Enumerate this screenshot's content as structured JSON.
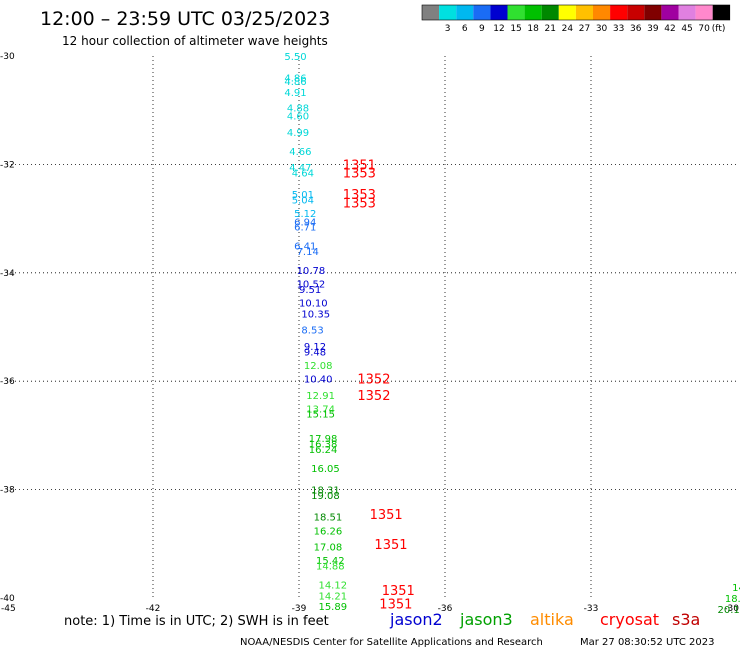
{
  "header": {
    "title": "12:00 – 23:59 UTC 03/25/2023",
    "subtitle": "12 hour collection of altimeter wave heights"
  },
  "legend": {
    "unit": "(ft)",
    "bins": [
      {
        "label": "",
        "color": "#808080"
      },
      {
        "label": "3",
        "color": "#00e0e0"
      },
      {
        "label": "6",
        "color": "#00b8f0"
      },
      {
        "label": "9",
        "color": "#1a6cf5"
      },
      {
        "label": "12",
        "color": "#0000d0"
      },
      {
        "label": "15",
        "color": "#30e030"
      },
      {
        "label": "18",
        "color": "#00c000"
      },
      {
        "label": "21",
        "color": "#008800"
      },
      {
        "label": "24",
        "color": "#ffff00"
      },
      {
        "label": "27",
        "color": "#ffc000"
      },
      {
        "label": "30",
        "color": "#ff8800"
      },
      {
        "label": "33",
        "color": "#ff0000"
      },
      {
        "label": "36",
        "color": "#c80000"
      },
      {
        "label": "39",
        "color": "#800000"
      },
      {
        "label": "42",
        "color": "#a000a0"
      },
      {
        "label": "45",
        "color": "#e080e0"
      },
      {
        "label": "70",
        "color": "#ff88cc"
      },
      {
        "label": "",
        "color": "#000000"
      }
    ]
  },
  "map": {
    "lon_range": [
      -45,
      -30
    ],
    "lat_range": [
      -40,
      -30
    ],
    "x_ticks": [
      "-45",
      "-42",
      "-39",
      "-36",
      "-33",
      "-30"
    ],
    "y_ticks": [
      "-30",
      "-32",
      "-34",
      "-36",
      "-38",
      "-40"
    ],
    "observations": [
      {
        "text": "5.50",
        "lon": -39.3,
        "lat": -30.0,
        "color": "#00d8d8"
      },
      {
        "text": "4.86",
        "lon": -39.3,
        "lat": -30.4,
        "color": "#00d8d8"
      },
      {
        "text": "4.86",
        "lon": -39.3,
        "lat": -30.46,
        "color": "#00d8d8"
      },
      {
        "text": "4.91",
        "lon": -39.3,
        "lat": -30.66,
        "color": "#00d8d8"
      },
      {
        "text": "4.88",
        "lon": -39.25,
        "lat": -30.95,
        "color": "#00d8d8"
      },
      {
        "text": "4.60",
        "lon": -39.25,
        "lat": -31.1,
        "color": "#00d8d8"
      },
      {
        "text": "4.99",
        "lon": -39.25,
        "lat": -31.4,
        "color": "#00d8d8"
      },
      {
        "text": "4.66",
        "lon": -39.2,
        "lat": -31.75,
        "color": "#00d8d8"
      },
      {
        "text": "4.47",
        "lon": -39.2,
        "lat": -32.05,
        "color": "#00d8d8"
      },
      {
        "text": "4.64",
        "lon": -39.15,
        "lat": -32.15,
        "color": "#00d8d8"
      },
      {
        "text": "5.01",
        "lon": -39.15,
        "lat": -32.55,
        "color": "#00b8f0"
      },
      {
        "text": "5.04",
        "lon": -39.15,
        "lat": -32.65,
        "color": "#00b8f0"
      },
      {
        "text": "5.12",
        "lon": -39.1,
        "lat": -32.9,
        "color": "#00b8f0"
      },
      {
        "text": "6.94",
        "lon": -39.1,
        "lat": -33.05,
        "color": "#1a6cf5"
      },
      {
        "text": "6.71",
        "lon": -39.1,
        "lat": -33.15,
        "color": "#1a6cf5"
      },
      {
        "text": "6.41",
        "lon": -39.1,
        "lat": -33.5,
        "color": "#1a6cf5"
      },
      {
        "text": "7.14",
        "lon": -39.05,
        "lat": -33.6,
        "color": "#1a6cf5"
      },
      {
        "text": "10.78",
        "lon": -39.05,
        "lat": -33.95,
        "color": "#0000d0"
      },
      {
        "text": "10.52",
        "lon": -39.05,
        "lat": -34.2,
        "color": "#0000d0"
      },
      {
        "text": "9.51",
        "lon": -39.0,
        "lat": -34.3,
        "color": "#0000d0"
      },
      {
        "text": "10.10",
        "lon": -39.0,
        "lat": -34.55,
        "color": "#0000d0"
      },
      {
        "text": "10.35",
        "lon": -38.95,
        "lat": -34.75,
        "color": "#0000d0"
      },
      {
        "text": "8.53",
        "lon": -38.95,
        "lat": -35.05,
        "color": "#1a6cf5"
      },
      {
        "text": "9.12",
        "lon": -38.9,
        "lat": -35.35,
        "color": "#0000d0"
      },
      {
        "text": "9.48",
        "lon": -38.9,
        "lat": -35.45,
        "color": "#0000d0"
      },
      {
        "text": "12.08",
        "lon": -38.9,
        "lat": -35.7,
        "color": "#30e030"
      },
      {
        "text": "10.40",
        "lon": -38.9,
        "lat": -35.95,
        "color": "#0000d0"
      },
      {
        "text": "12.91",
        "lon": -38.85,
        "lat": -36.25,
        "color": "#30e030"
      },
      {
        "text": "13.74",
        "lon": -38.85,
        "lat": -36.5,
        "color": "#30e030"
      },
      {
        "text": "15.15",
        "lon": -38.85,
        "lat": -36.6,
        "color": "#00c000"
      },
      {
        "text": "17.98",
        "lon": -38.8,
        "lat": -37.05,
        "color": "#00c000"
      },
      {
        "text": "16.38",
        "lon": -38.8,
        "lat": -37.15,
        "color": "#00c000"
      },
      {
        "text": "16.24",
        "lon": -38.8,
        "lat": -37.25,
        "color": "#00c000"
      },
      {
        "text": "16.05",
        "lon": -38.75,
        "lat": -37.6,
        "color": "#00c000"
      },
      {
        "text": "18.31",
        "lon": -38.75,
        "lat": -38.0,
        "color": "#008800"
      },
      {
        "text": "19.08",
        "lon": -38.75,
        "lat": -38.1,
        "color": "#008800"
      },
      {
        "text": "18.51",
        "lon": -38.7,
        "lat": -38.5,
        "color": "#008800"
      },
      {
        "text": "16.26",
        "lon": -38.7,
        "lat": -38.75,
        "color": "#00c000"
      },
      {
        "text": "17.08",
        "lon": -38.7,
        "lat": -39.05,
        "color": "#00c000"
      },
      {
        "text": "15.42",
        "lon": -38.65,
        "lat": -39.3,
        "color": "#00c000"
      },
      {
        "text": "14.88",
        "lon": -38.65,
        "lat": -39.4,
        "color": "#30e030"
      },
      {
        "text": "14.12",
        "lon": -38.6,
        "lat": -39.75,
        "color": "#30e030"
      },
      {
        "text": "14.21",
        "lon": -38.6,
        "lat": -39.95,
        "color": "#30e030"
      },
      {
        "text": "15.89",
        "lon": -38.6,
        "lat": -40.15,
        "color": "#00c000"
      },
      {
        "text": "14",
        "lon": -30.1,
        "lat": -39.8,
        "color": "#00c000"
      },
      {
        "text": "18.",
        "lon": -30.25,
        "lat": -40.0,
        "color": "#00c000"
      },
      {
        "text": "20.1",
        "lon": -30.4,
        "lat": -40.2,
        "color": "#008800"
      }
    ],
    "pass_times": [
      {
        "text": "1351",
        "lon": -38.1,
        "lat": -32.0,
        "color": "#ff0000"
      },
      {
        "text": "1353",
        "lon": -38.1,
        "lat": -32.15,
        "color": "#ff0000"
      },
      {
        "text": "1353",
        "lon": -38.1,
        "lat": -32.55,
        "color": "#ff0000"
      },
      {
        "text": "1353",
        "lon": -38.1,
        "lat": -32.7,
        "color": "#ff0000"
      },
      {
        "text": "1352",
        "lon": -37.8,
        "lat": -35.95,
        "color": "#ff0000"
      },
      {
        "text": "1352",
        "lon": -37.8,
        "lat": -36.25,
        "color": "#ff0000"
      },
      {
        "text": "1351",
        "lon": -37.55,
        "lat": -38.45,
        "color": "#ff0000"
      },
      {
        "text": "1351",
        "lon": -37.45,
        "lat": -39.0,
        "color": "#ff0000"
      },
      {
        "text": "1351",
        "lon": -37.3,
        "lat": -39.85,
        "color": "#ff0000"
      },
      {
        "text": "1351",
        "lon": -37.35,
        "lat": -40.1,
        "color": "#ff0000"
      }
    ]
  },
  "footer": {
    "note": "note:  1) Time is in UTC; 2) SWH is in feet",
    "satellites": [
      {
        "name": "jason2",
        "color": "#0000d0"
      },
      {
        "name": "jason3",
        "color": "#00a000"
      },
      {
        "name": "altika",
        "color": "#ff8c00"
      },
      {
        "name": "cryosat",
        "color": "#ff0000"
      },
      {
        "name": "s3a",
        "color": "#c00000"
      }
    ],
    "credit": "NOAA/NESDIS Center for Satellite Applications and Research",
    "timestamp": "Mar 27 08:30:52 UTC 2023"
  }
}
